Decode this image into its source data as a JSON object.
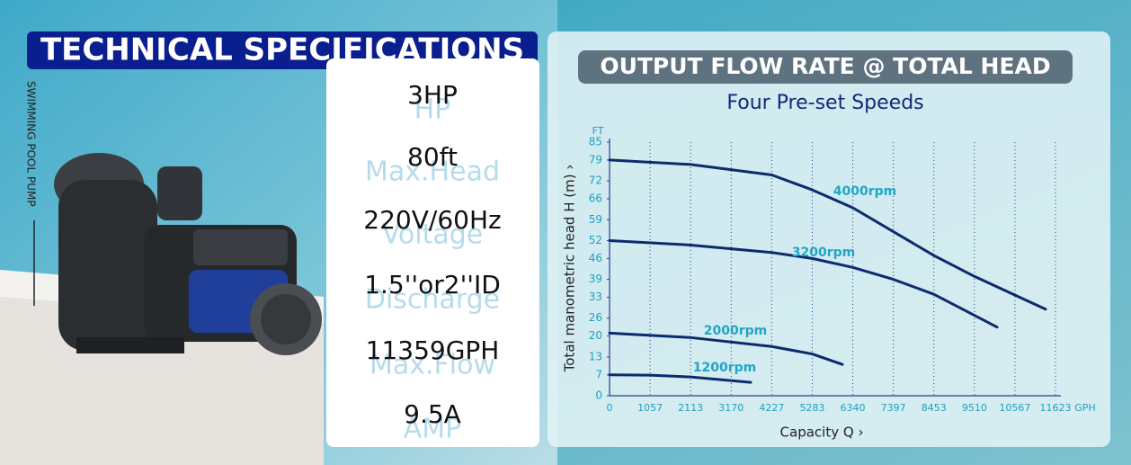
{
  "header": {
    "title": "TECHNICAL SPECIFICATIONS",
    "side_label": "SWIMMING POOL PUMP"
  },
  "specs": [
    {
      "value": "3HP",
      "label": "HP"
    },
    {
      "value": "80ft",
      "label": "Max.Head"
    },
    {
      "value": "220V/60Hz",
      "label": "Voltage"
    },
    {
      "value": "1.5''or2''ID",
      "label": "Discharge"
    },
    {
      "value": "11359GPH",
      "label": "Max.Flow"
    },
    {
      "value": "9.5A",
      "label": "AMP"
    }
  ],
  "chart_data": {
    "type": "line",
    "title": "OUTPUT FLOW RATE @ TOTAL HEAD",
    "subtitle": "Four Pre-set Speeds",
    "y_label": "Total manometric head H (m) ›",
    "x_label": "Capacity Q ›",
    "y_unit": "FT",
    "x_unit": "GPH",
    "xlim": [
      0,
      11623
    ],
    "ylim": [
      0,
      85
    ],
    "xticks": [
      0,
      1057,
      2113,
      3170,
      4227,
      5283,
      6340,
      7397,
      8453,
      9510,
      10567,
      11623
    ],
    "yticks": [
      0,
      7,
      13,
      20,
      26,
      33,
      39,
      46,
      52,
      59,
      66,
      72,
      79,
      85
    ],
    "grid": true,
    "series": [
      {
        "name": "4000rpm",
        "color": "#0d2a6e",
        "x": [
          0,
          2113,
          4227,
          5283,
          6340,
          7397,
          8453,
          9510,
          11364
        ],
        "values": [
          79,
          77.5,
          74,
          69,
          63,
          55,
          47,
          40,
          29
        ]
      },
      {
        "name": "3200rpm",
        "color": "#0d2a6e",
        "x": [
          0,
          2113,
          4227,
          5283,
          6340,
          7397,
          8453,
          10100
        ],
        "values": [
          52,
          50.5,
          48,
          46,
          43,
          39,
          34,
          23
        ]
      },
      {
        "name": "2000rpm",
        "color": "#0d2a6e",
        "x": [
          0,
          2113,
          4227,
          5283,
          6068
        ],
        "values": [
          21,
          19.5,
          16.5,
          14,
          10.5
        ]
      },
      {
        "name": "1200rpm",
        "color": "#0d2a6e",
        "x": [
          0,
          1057,
          2113,
          3678
        ],
        "values": [
          7,
          6.9,
          6.3,
          4.5
        ]
      }
    ]
  }
}
